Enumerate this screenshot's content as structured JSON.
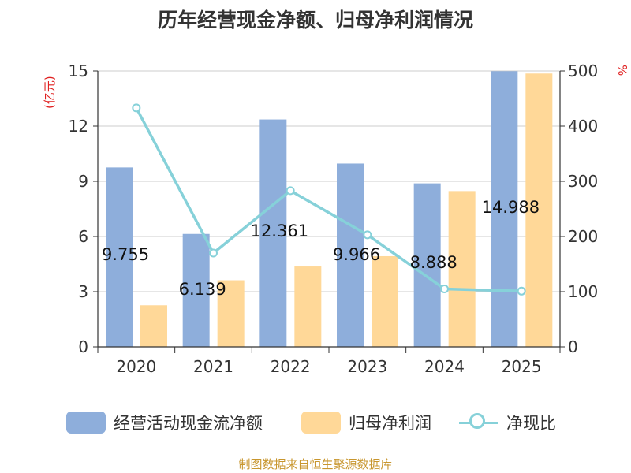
{
  "title": "历年经营现金净额、归母净利润情况",
  "left_axis_unit": "(亿元)",
  "right_axis_unit": "%",
  "source": "制图数据来自恒生聚源数据库",
  "colors": {
    "bar_ocf": "#8eaedb",
    "bar_np": "#ffd898",
    "line": "#86d1d9",
    "grid": "#cccccc",
    "axis": "#333333"
  },
  "legend": [
    {
      "label": "经营活动现金流净额",
      "kind": "bar",
      "color": "#8eaedb"
    },
    {
      "label": "归母净利润",
      "kind": "bar",
      "color": "#ffd898"
    },
    {
      "label": "净现比",
      "kind": "line",
      "color": "#86d1d9"
    }
  ],
  "chart_data": {
    "type": "bar",
    "categories": [
      "2020",
      "2021",
      "2022",
      "2023",
      "2024",
      "2025"
    ],
    "ylim": [
      0,
      15
    ],
    "yticks": [
      0,
      3,
      6,
      9,
      12,
      15
    ],
    "y2lim": [
      0,
      500
    ],
    "y2ticks": [
      0,
      100,
      200,
      300,
      400,
      500
    ],
    "series": [
      {
        "name": "经营活动现金流净额",
        "type": "bar",
        "axis": "left",
        "values": [
          9.755,
          6.139,
          12.361,
          9.966,
          8.888,
          14.988
        ],
        "labels": [
          "9.755",
          "6.139",
          "12.361",
          "9.966",
          "8.888",
          "14.988"
        ]
      },
      {
        "name": "归母净利润",
        "type": "bar",
        "axis": "left",
        "values": [
          2.26,
          3.62,
          4.37,
          4.93,
          8.47,
          14.86
        ]
      },
      {
        "name": "净现比",
        "type": "line",
        "axis": "right",
        "values": [
          433,
          170,
          283,
          203,
          105,
          101
        ]
      }
    ],
    "grid": true,
    "legend_position": "bottom"
  }
}
